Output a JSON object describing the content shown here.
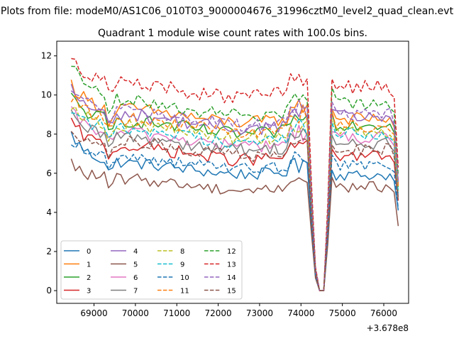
{
  "figure": {
    "suptitle": "Plots from file: modeM0/AS1C06_010T03_9000004676_31996cztM0_level2_quad_clean.evt",
    "title": "Quadrant 1 module wise count rates with 100.0s bins."
  },
  "chart_data": {
    "type": "line",
    "title": "Quadrant 1 module wise count rates with 100.0s bins.",
    "xlabel": "",
    "ylabel": "",
    "x_offset_label": "+3.678e8",
    "xlim": [
      68100,
      76600
    ],
    "ylim": [
      -0.65,
      12.75
    ],
    "x_ticks": [
      69000,
      70000,
      71000,
      72000,
      73000,
      74000,
      75000,
      76000
    ],
    "x_tick_labels": [
      "69000",
      "70000",
      "71000",
      "72000",
      "73000",
      "74000",
      "75000",
      "76000"
    ],
    "y_ticks": [
      0,
      2,
      4,
      6,
      8,
      10,
      12
    ],
    "y_tick_labels": [
      "0",
      "2",
      "4",
      "6",
      "8",
      "10",
      "12"
    ],
    "grid": false,
    "legend_position": "lower-left",
    "legend_columns": 4,
    "series": [
      {
        "name": "0",
        "color": "#1f77b4",
        "dash": "solid",
        "base": 6.2,
        "start": 8.0,
        "wave": 0.25,
        "noise": 0.3,
        "p1": 6.3,
        "p2": 5.9,
        "end": 4.1
      },
      {
        "name": "1",
        "color": "#ff7f0e",
        "dash": "solid",
        "base": 8.9,
        "start": 10.6,
        "wave": 0.3,
        "noise": 0.35,
        "p1": 9.4,
        "p2": 8.8,
        "end": 5.5
      },
      {
        "name": "2",
        "color": "#2ca02c",
        "dash": "solid",
        "base": 8.3,
        "start": 9.9,
        "wave": 0.3,
        "noise": 0.35,
        "p1": 9.2,
        "p2": 8.5,
        "end": 5.3
      },
      {
        "name": "3",
        "color": "#d62728",
        "dash": "solid",
        "base": 7.0,
        "start": 8.6,
        "wave": 0.3,
        "noise": 0.35,
        "p1": 7.3,
        "p2": 6.9,
        "end": 4.6
      },
      {
        "name": "4",
        "color": "#9467bd",
        "dash": "solid",
        "base": 8.6,
        "start": 10.3,
        "wave": 0.3,
        "noise": 0.35,
        "p1": 9.3,
        "p2": 8.9,
        "end": 5.4
      },
      {
        "name": "5",
        "color": "#8c564b",
        "dash": "solid",
        "base": 5.4,
        "start": 6.5,
        "wave": 0.25,
        "noise": 0.3,
        "p1": 5.8,
        "p2": 5.3,
        "end": 3.3
      },
      {
        "name": "6",
        "color": "#e377c2",
        "dash": "solid",
        "base": 7.7,
        "start": 9.1,
        "wave": 0.3,
        "noise": 0.35,
        "p1": 8.1,
        "p2": 7.8,
        "end": 4.9
      },
      {
        "name": "7",
        "color": "#7f7f7f",
        "dash": "solid",
        "base": 7.5,
        "start": 8.9,
        "wave": 0.3,
        "noise": 0.35,
        "p1": 7.9,
        "p2": 7.5,
        "end": 4.8
      },
      {
        "name": "8",
        "color": "#bcbd22",
        "dash": "dashed",
        "base": 8.1,
        "start": 9.6,
        "wave": 0.3,
        "noise": 0.35,
        "p1": 8.6,
        "p2": 8.1,
        "end": 5.1
      },
      {
        "name": "9",
        "color": "#17becf",
        "dash": "dashed",
        "base": 7.9,
        "start": 9.4,
        "wave": 0.3,
        "noise": 0.35,
        "p1": 8.5,
        "p2": 8.0,
        "end": 5.0
      },
      {
        "name": "10",
        "color": "#1f77b4",
        "dash": "dashed",
        "base": 6.5,
        "start": 7.7,
        "wave": 0.25,
        "noise": 0.3,
        "p1": 6.8,
        "p2": 6.4,
        "end": 4.2
      },
      {
        "name": "11",
        "color": "#ff7f0e",
        "dash": "dashed",
        "base": 8.4,
        "start": 9.9,
        "wave": 0.3,
        "noise": 0.35,
        "p1": 9.0,
        "p2": 8.4,
        "end": 5.3
      },
      {
        "name": "12",
        "color": "#2ca02c",
        "dash": "dashed",
        "base": 9.3,
        "start": 11.7,
        "wave": 0.3,
        "noise": 0.35,
        "p1": 10.2,
        "p2": 9.6,
        "end": 5.9
      },
      {
        "name": "13",
        "color": "#d62728",
        "dash": "dashed",
        "base": 10.2,
        "start": 12.1,
        "wave": 0.3,
        "noise": 0.4,
        "p1": 11.0,
        "p2": 10.4,
        "end": 6.3
      },
      {
        "name": "14",
        "color": "#9467bd",
        "dash": "dashed",
        "base": 8.8,
        "start": 10.4,
        "wave": 0.3,
        "noise": 0.35,
        "p1": 9.8,
        "p2": 9.0,
        "end": 5.6
      },
      {
        "name": "15",
        "color": "#8c564b",
        "dash": "dashed",
        "base": 7.2,
        "start": 8.3,
        "wave": 0.3,
        "noise": 0.35,
        "p1": 7.6,
        "p2": 7.2,
        "end": 4.6
      }
    ]
  }
}
